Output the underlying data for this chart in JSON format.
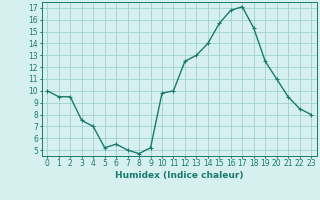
{
  "x": [
    0,
    1,
    2,
    3,
    4,
    5,
    6,
    7,
    8,
    9,
    10,
    11,
    12,
    13,
    14,
    15,
    16,
    17,
    18,
    19,
    20,
    21,
    22,
    23
  ],
  "y": [
    10.0,
    9.5,
    9.5,
    7.5,
    7.0,
    5.2,
    5.5,
    5.0,
    4.7,
    5.2,
    9.8,
    10.0,
    12.5,
    13.0,
    14.0,
    15.7,
    16.8,
    17.1,
    15.3,
    12.5,
    11.0,
    9.5,
    8.5,
    8.0
  ],
  "line_color": "#1a7a6e",
  "marker": "+",
  "marker_size": 3,
  "bg_color": "#d6f0f0",
  "grid_color": "#a0d0d0",
  "xlabel": "Humidex (Indice chaleur)",
  "xlim": [
    -0.5,
    23.5
  ],
  "ylim": [
    4.5,
    17.5
  ],
  "yticks": [
    5,
    6,
    7,
    8,
    9,
    10,
    11,
    12,
    13,
    14,
    15,
    16,
    17
  ],
  "xticks": [
    0,
    1,
    2,
    3,
    4,
    5,
    6,
    7,
    8,
    9,
    10,
    11,
    12,
    13,
    14,
    15,
    16,
    17,
    18,
    19,
    20,
    21,
    22,
    23
  ],
  "tick_color": "#1a7a6e",
  "label_color": "#1a7a6e",
  "xlabel_fontsize": 6.5,
  "tick_fontsize": 5.5,
  "line_width": 1.0
}
